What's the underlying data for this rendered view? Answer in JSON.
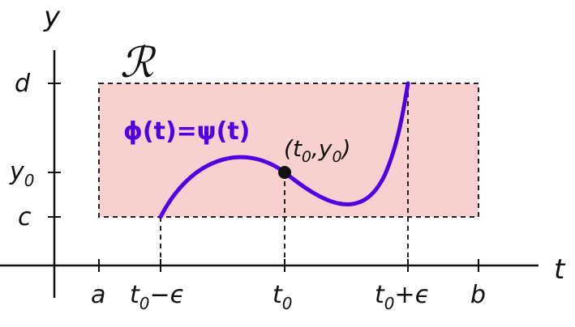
{
  "diagram": {
    "region_label": "ℛ",
    "function_label": "ϕ(t)=ψ(t)",
    "point_label": {
      "open": "(",
      "t": "t",
      "t_sub": "0",
      "comma": ",",
      "y": "y",
      "y_sub": "0",
      "close": ")"
    },
    "axes": {
      "x_axis_label": "t",
      "y_axis_label": "y"
    },
    "x_ticks": {
      "a": "a",
      "left": {
        "main": "t",
        "sub": "0",
        "suffix": "−ϵ"
      },
      "center": {
        "main": "t",
        "sub": "0"
      },
      "right": {
        "main": "t",
        "sub": "0",
        "suffix": "+ϵ"
      },
      "b": "b"
    },
    "y_ticks": {
      "d": "d",
      "y0": {
        "main": "y",
        "sub": "0"
      },
      "c": "c"
    }
  },
  "colors": {
    "region_fill": "#f9d0d0",
    "curve": "#5200e0",
    "axis": "#111111",
    "point": "#111111"
  }
}
